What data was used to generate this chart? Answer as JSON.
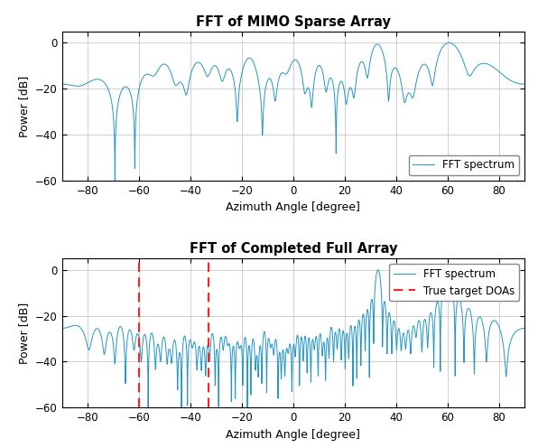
{
  "title1": "FFT of MIMO Sparse Array",
  "title2": "FFT of Completed Full Array",
  "xlabel": "Azimuth Angle [degree]",
  "ylabel": "Power [dB]",
  "xlim": [
    -90,
    90
  ],
  "ylim": [
    -60,
    5
  ],
  "yticks": [
    0,
    -20,
    -40,
    -60
  ],
  "xticks": [
    -80,
    -60,
    -40,
    -20,
    0,
    20,
    40,
    60,
    80
  ],
  "doa1": -60,
  "doa2": -33,
  "line_color": "#2196c4",
  "dashed_color": "#ff2222",
  "legend1": "FFT spectrum",
  "legend2": "FFT spectrum",
  "legend2b": "True target DOAs",
  "background_color": "#ffffff",
  "grid_color": "#c8c8c8"
}
